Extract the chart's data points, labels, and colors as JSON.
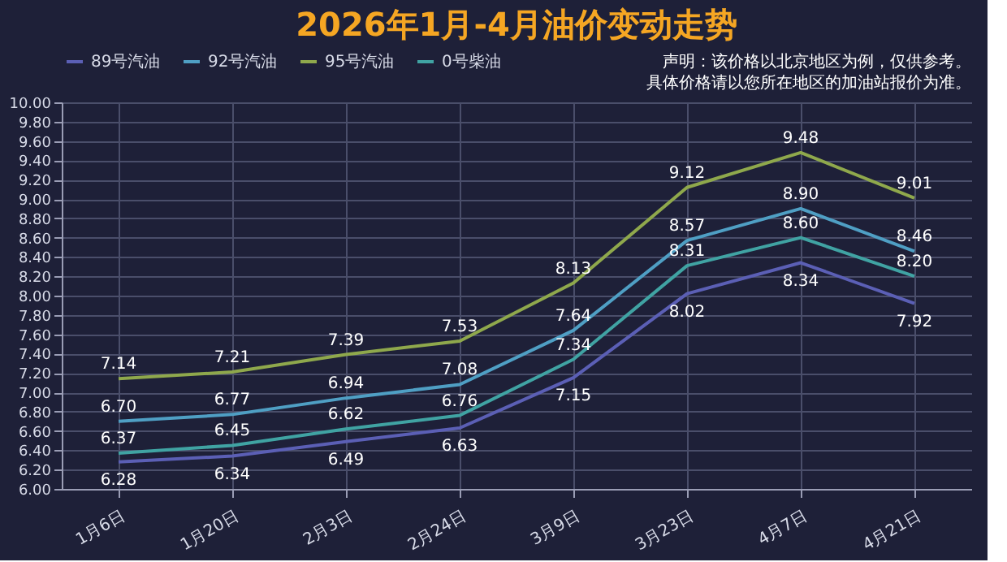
{
  "chart_data": {
    "type": "line",
    "title": "2026年1月-4月油价变动走势",
    "annotations": [
      "声明：该价格以北京地区为例，仅供参考。",
      "具体价格请以您所在地区的加油站报价为准。"
    ],
    "categories": [
      "1月6日",
      "1月20日",
      "2月3日",
      "2月24日",
      "3月9日",
      "3月23日",
      "4月7日",
      "4月21日"
    ],
    "series": [
      {
        "name": "89号汽油",
        "color": "#5b5fb5",
        "values": [
          6.28,
          6.34,
          6.49,
          6.63,
          7.15,
          8.02,
          8.34,
          7.92
        ],
        "value_labels": [
          "6.28",
          "6.34",
          "6.49",
          "6.63",
          "7.15",
          "8.02",
          "8.34",
          "7.92"
        ]
      },
      {
        "name": "92号汽油",
        "color": "#4f9fc4",
        "values": [
          6.7,
          6.77,
          6.94,
          7.08,
          7.64,
          8.57,
          8.9,
          8.46
        ],
        "value_labels": [
          "6.70",
          "6.77",
          "6.94",
          "7.08",
          "7.64",
          "8.57",
          "8.90",
          "8.46"
        ]
      },
      {
        "name": "95号汽油",
        "color": "#8fa84c",
        "values": [
          7.14,
          7.21,
          7.39,
          7.53,
          8.13,
          9.12,
          9.48,
          9.01
        ],
        "value_labels": [
          "7.14",
          "7.21",
          "7.39",
          "7.53",
          "8.13",
          "9.12",
          "9.48",
          "9.01"
        ]
      },
      {
        "name": "0号柴油",
        "color": "#40a3a3",
        "values": [
          6.37,
          6.45,
          6.62,
          6.76,
          7.34,
          8.31,
          8.6,
          8.2
        ],
        "value_labels": [
          "6.37",
          "6.45",
          "6.62",
          "6.76",
          "7.34",
          "8.31",
          "8.60",
          "8.20"
        ]
      }
    ],
    "ylim": [
      6.0,
      10.0
    ],
    "yticks": [
      {
        "value": 6.0,
        "label": "6.00"
      },
      {
        "value": 6.2,
        "label": "6.20"
      },
      {
        "value": 6.4,
        "label": "6.40"
      },
      {
        "value": 6.6,
        "label": "6.60"
      },
      {
        "value": 6.8,
        "label": "6.80"
      },
      {
        "value": 7.0,
        "label": "7.00"
      },
      {
        "value": 7.2,
        "label": "7.20"
      },
      {
        "value": 7.4,
        "label": "7.40"
      },
      {
        "value": 7.6,
        "label": "7.60"
      },
      {
        "value": 7.8,
        "label": "7.80"
      },
      {
        "value": 8.0,
        "label": "8.00"
      },
      {
        "value": 8.2,
        "label": "8.20"
      },
      {
        "value": 8.4,
        "label": "8.40"
      },
      {
        "value": 8.6,
        "label": "8.60"
      },
      {
        "value": 8.8,
        "label": "8.80"
      },
      {
        "value": 9.0,
        "label": "9.00"
      },
      {
        "value": 9.2,
        "label": "9.20"
      },
      {
        "value": 9.4,
        "label": "9.40"
      },
      {
        "value": 9.6,
        "label": "9.60"
      },
      {
        "value": 9.8,
        "label": "9.80"
      },
      {
        "value": 10.0,
        "label": "10.00"
      }
    ],
    "grid": true,
    "legend": "top",
    "data_labels": true,
    "marker": "none",
    "line_style": "solid"
  }
}
